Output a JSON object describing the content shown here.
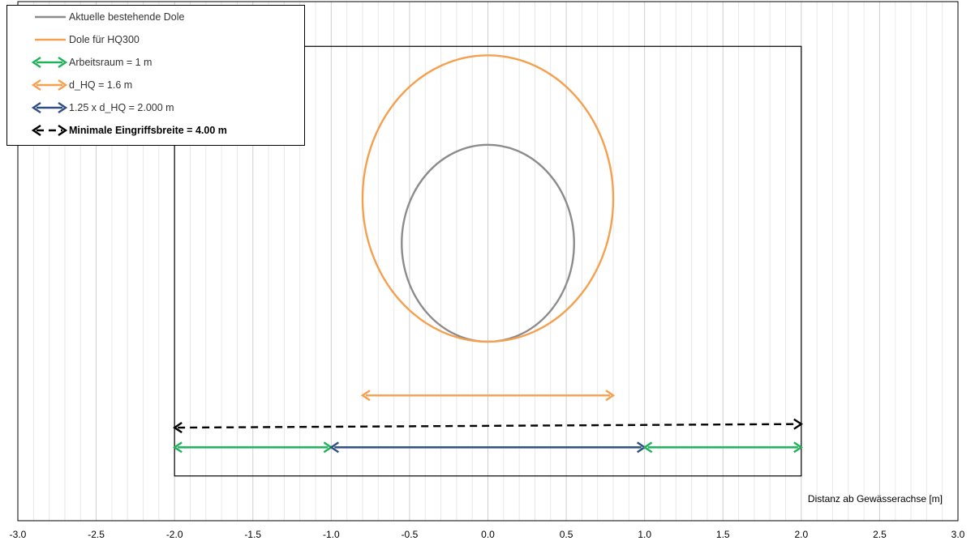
{
  "chart_data": {
    "type": "line",
    "xlabel": "Distanz ab Gewässerachse [m]",
    "xlim": [
      -3.0,
      3.0
    ],
    "ylim": [
      -0.25,
      2.65
    ],
    "x_tick_labels": [
      "-3.0",
      "-2.5",
      "-2.0",
      "-1.5",
      "-1.0",
      "-0.5",
      "0.0",
      "0.5",
      "1.0",
      "1.5",
      "2.0",
      "2.5",
      "3.0"
    ],
    "grid": "vertical",
    "legend_position": "top-left",
    "excavation_box": {
      "x": [
        -2.0,
        2.0
      ],
      "y": [
        0.0,
        2.4
      ]
    },
    "circles": [
      {
        "name": "Aktuelle bestehende Dole",
        "center": [
          0.0,
          1.3
        ],
        "radius": 0.55,
        "color": "#8c8c8c"
      },
      {
        "name": "Dole für HQ300",
        "center": [
          0.0,
          1.55
        ],
        "radius": 0.8,
        "color": "#f5a04f"
      }
    ],
    "arrows": [
      {
        "name": "d_HQ = 1.6 m",
        "x": [
          -0.8,
          0.8
        ],
        "y": 0.45,
        "color": "#f5a04f",
        "dashed": false
      },
      {
        "name": "Minimale Eingriffsbreite = 4.00 m",
        "x": [
          -2.0,
          2.0
        ],
        "y": [
          0.27,
          0.29
        ],
        "color": "#000000",
        "dashed": true
      },
      {
        "name": "Arbeitsraum = 1 m",
        "x": [
          -2.0,
          -1.0
        ],
        "y": 0.16,
        "color": "#1fb25a",
        "dashed": false
      },
      {
        "name": "1.25 x d_HQ = 2.000 m",
        "x": [
          -1.0,
          1.0
        ],
        "y": 0.16,
        "color": "#2f4f84",
        "dashed": false
      },
      {
        "name": "Arbeitsraum = 1 m",
        "x": [
          1.0,
          2.0
        ],
        "y": 0.16,
        "color": "#1fb25a",
        "dashed": false
      }
    ],
    "legend": [
      {
        "label": "Aktuelle bestehende Dole",
        "kind": "line",
        "color": "#8c8c8c",
        "bold": false
      },
      {
        "label": "Dole für HQ300",
        "kind": "line",
        "color": "#f5a04f",
        "bold": false
      },
      {
        "label": "Arbeitsraum = 1 m",
        "kind": "arrow",
        "color": "#1fb25a",
        "bold": false
      },
      {
        "label": "d_HQ = 1.6 m",
        "kind": "arrow",
        "color": "#f5a04f",
        "bold": false
      },
      {
        "label": "1.25 x d_HQ = 2.000 m",
        "kind": "arrow",
        "color": "#2f4f84",
        "bold": false
      },
      {
        "label": "Minimale Eingriffsbreite = 4.00 m",
        "kind": "dashed-arrow",
        "color": "#000000",
        "bold": true
      }
    ]
  }
}
